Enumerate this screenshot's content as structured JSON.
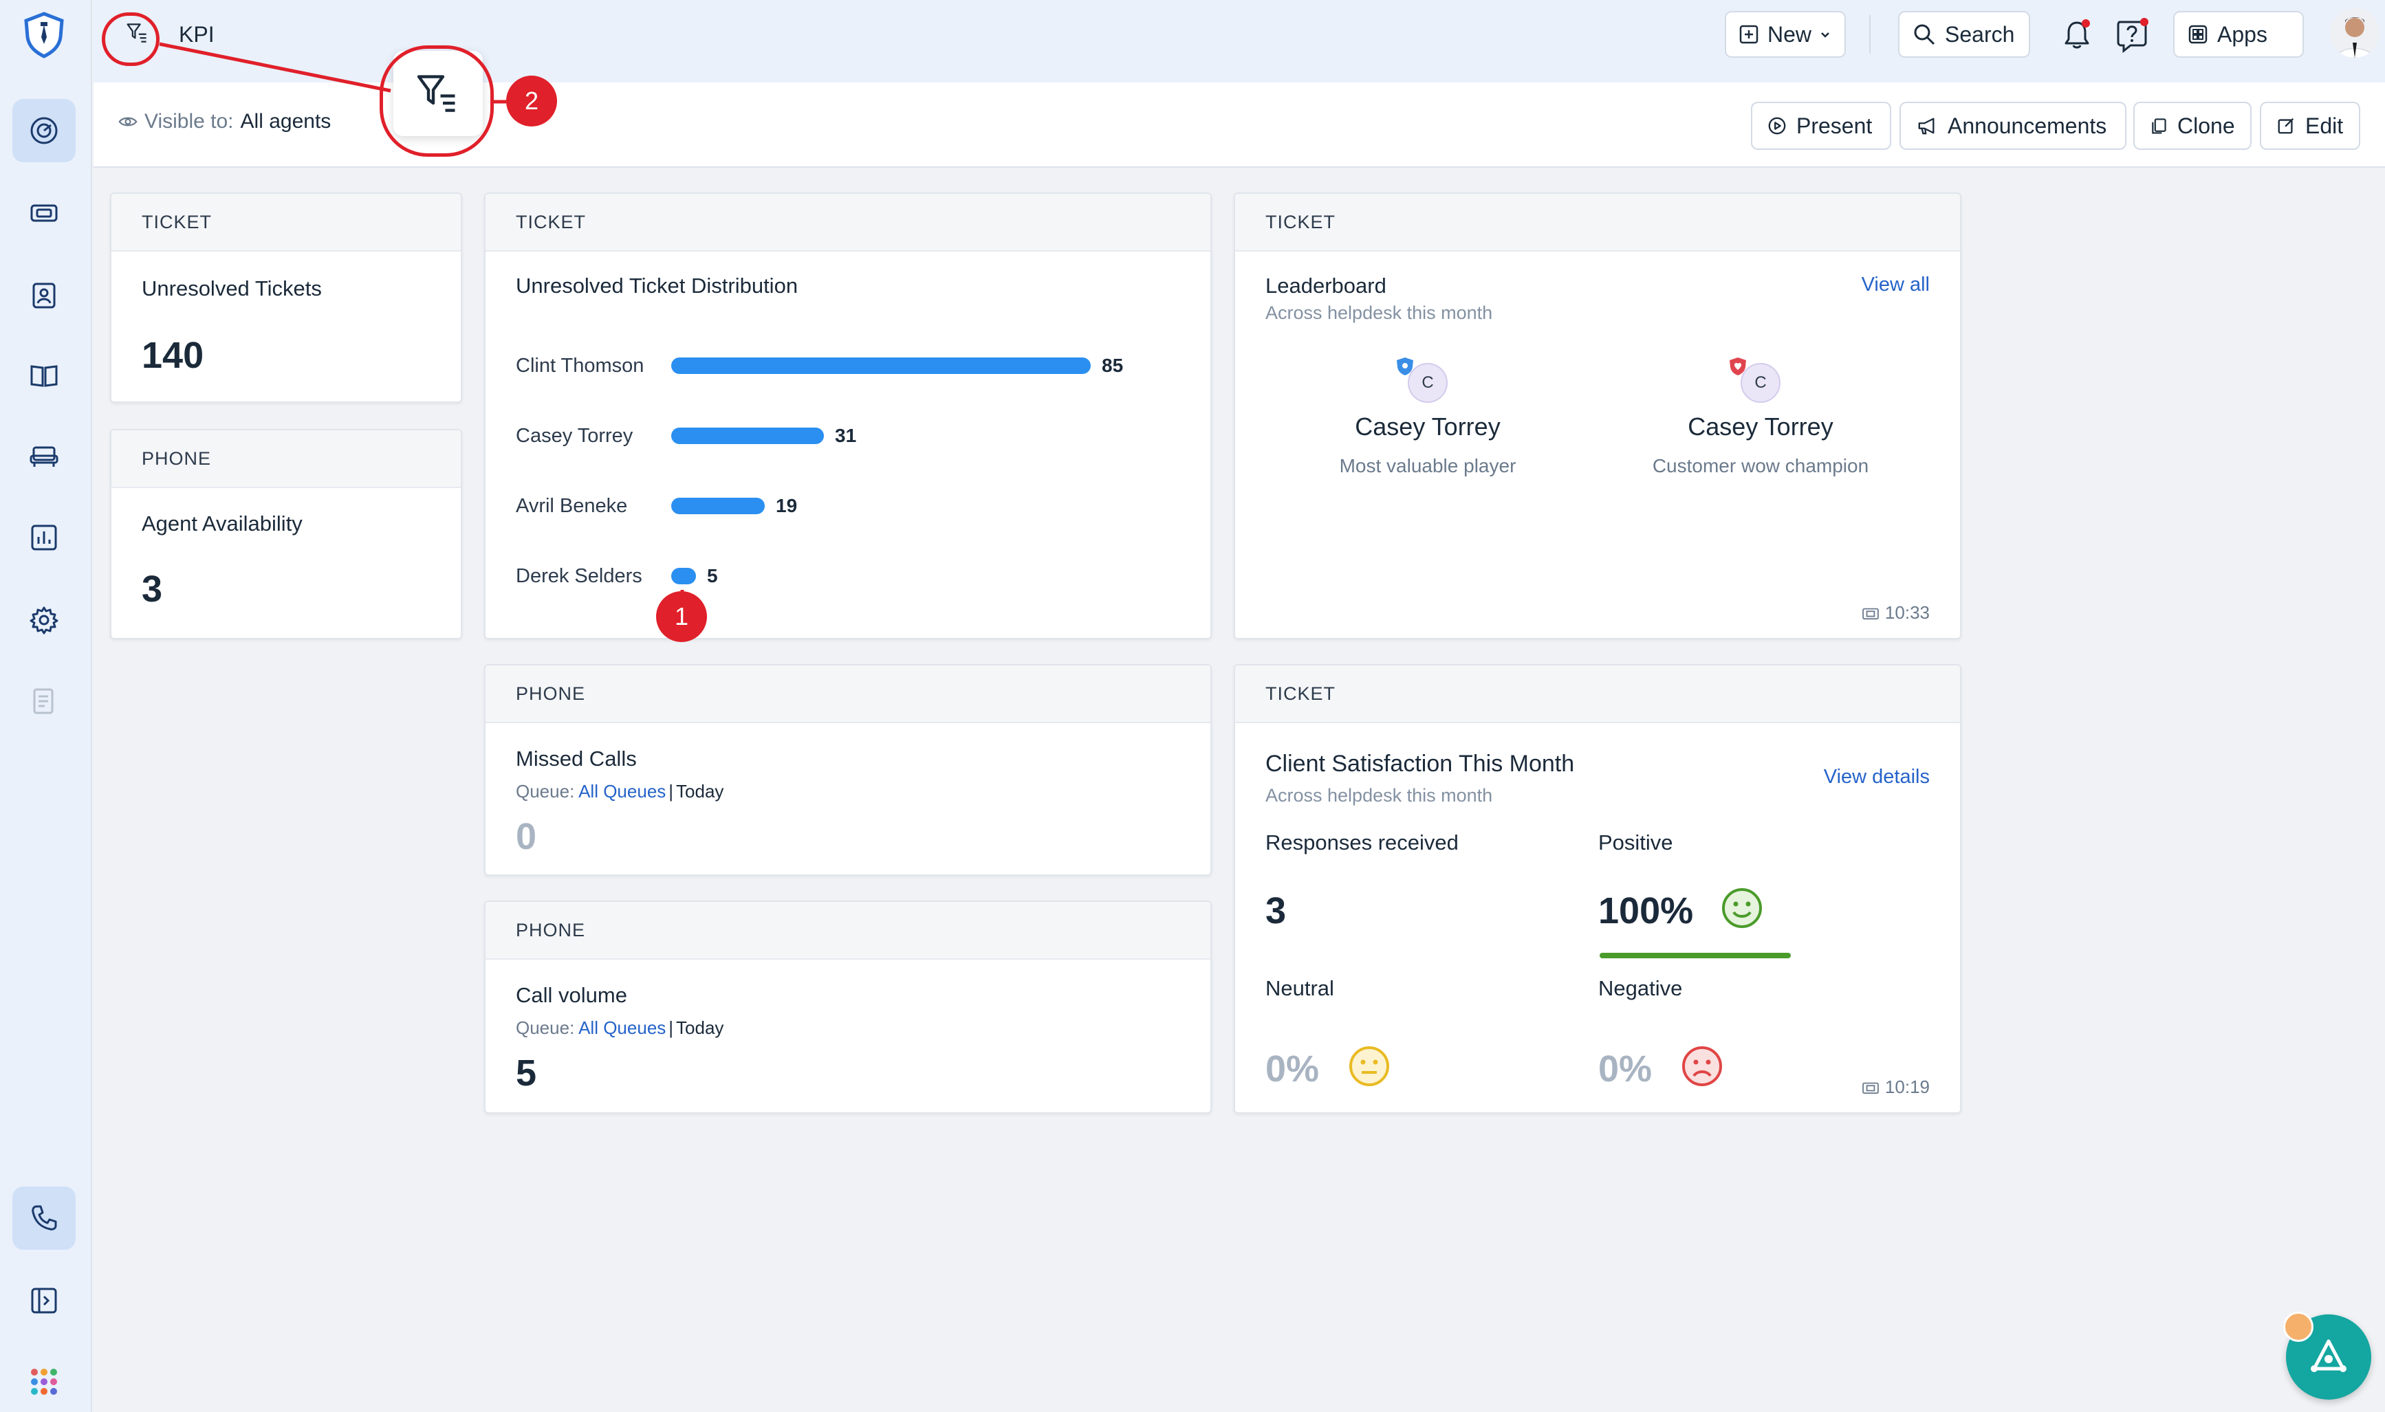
{
  "topbar": {
    "title": "KPI",
    "new_label": "New",
    "search_label": "Search",
    "apps_label": "Apps"
  },
  "subheader": {
    "visible_prefix": "Visible to:",
    "visible_value": "All agents",
    "actions": [
      "Present",
      "Announcements",
      "Clone",
      "Edit"
    ]
  },
  "annotations": {
    "badge_1": "1",
    "badge_2": "2"
  },
  "widgets": {
    "unresolved": {
      "category": "TICKET",
      "title": "Unresolved Tickets",
      "value": "140"
    },
    "availability": {
      "category": "PHONE",
      "title": "Agent Availability",
      "value": "3"
    },
    "distribution": {
      "category": "TICKET",
      "title": "Unresolved Ticket Distribution",
      "rows": [
        {
          "name": "Clint Thomson",
          "value": 85
        },
        {
          "name": "Casey Torrey",
          "value": 31
        },
        {
          "name": "Avril Beneke",
          "value": 19
        },
        {
          "name": "Derek Selders",
          "value": 5
        }
      ]
    },
    "leaderboard": {
      "category": "TICKET",
      "title": "Leaderboard",
      "subtitle": "Across helpdesk this month",
      "view_all": "View all",
      "people": [
        {
          "initial": "C",
          "name": "Casey Torrey",
          "role": "Most valuable player",
          "shield_color": "#3a8ee6"
        },
        {
          "initial": "C",
          "name": "Casey Torrey",
          "role": "Customer wow champion",
          "shield_color": "#e0454f"
        }
      ],
      "time": "10:33"
    },
    "missed_calls": {
      "category": "PHONE",
      "title": "Missed Calls",
      "queue_label": "Queue:",
      "queue_value": "All Queues",
      "period": "Today",
      "value": "0"
    },
    "call_volume": {
      "category": "PHONE",
      "title": "Call volume",
      "queue_label": "Queue:",
      "queue_value": "All Queues",
      "period": "Today",
      "value": "5"
    },
    "csat": {
      "category": "TICKET",
      "title": "Client Satisfaction This Month",
      "subtitle": "Across helpdesk this month",
      "view_details": "View details",
      "responses_label": "Responses received",
      "responses_value": "3",
      "positive_label": "Positive",
      "positive_value": "100%",
      "neutral_label": "Neutral",
      "neutral_value": "0%",
      "negative_label": "Negative",
      "negative_value": "0%",
      "time": "10:19"
    }
  },
  "colors": {
    "bar": "#2a8ff0",
    "accent_link": "#2563c9",
    "annotation": "#e0202a",
    "positive": "#4a9b2a"
  }
}
